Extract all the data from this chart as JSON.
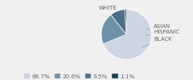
{
  "labels": [
    "WHITE",
    "BLACK",
    "HISPANIC",
    "ASIAN"
  ],
  "values": [
    68.7,
    20.6,
    9.5,
    1.1
  ],
  "colors": [
    "#cdd5e0",
    "#6e92aa",
    "#4a6f8a",
    "#1e3f58"
  ],
  "legend_labels": [
    "68.7%",
    "20.6%",
    "9.5%",
    "1.1%"
  ],
  "label_fontsize": 5.0,
  "legend_fontsize": 5.2,
  "figsize": [
    2.4,
    1.0
  ],
  "dpi": 100,
  "bg_color": "#f0f0f0",
  "text_color": "#666666",
  "line_color": "#999999"
}
